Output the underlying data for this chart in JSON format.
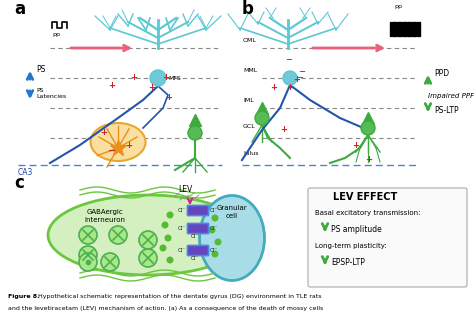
{
  "bg_color": "#ffffff",
  "panel_a_label": "a",
  "panel_b_label": "b",
  "panel_c_label": "c",
  "cyan_tree": "#5BC8D4",
  "green_neuron": "#3DAA3D",
  "blue_axon": "#2255AA",
  "pink_arrow": "#E8607A",
  "orange_cell": "#F08020",
  "orange_light": "#FAC070",
  "red_sign": "#CC2222",
  "caption_bold": "Figure 8.",
  "caption_rest": " Hypothetical schematic representation of the dentate gyrus (DG) environment in TLE rats",
  "caption2": "and the levetiracetam (LEV) mechanism of action. (a) As a consequence of the death of mossy cells",
  "lev_title": "LEV EFFECT",
  "lev_line1": "Basal excitatory transmission:",
  "lev_line2": "PS amplitude",
  "lev_line3": "Long-term plasticity:",
  "lev_line4": "EPSP-LTP",
  "gaba_green_light": "#C8EDB0",
  "gaba_green_mid": "#7EC860",
  "granular_cyan": "#90D8E0",
  "purple_channel": "#7040B0",
  "blue_channel": "#4060D0"
}
